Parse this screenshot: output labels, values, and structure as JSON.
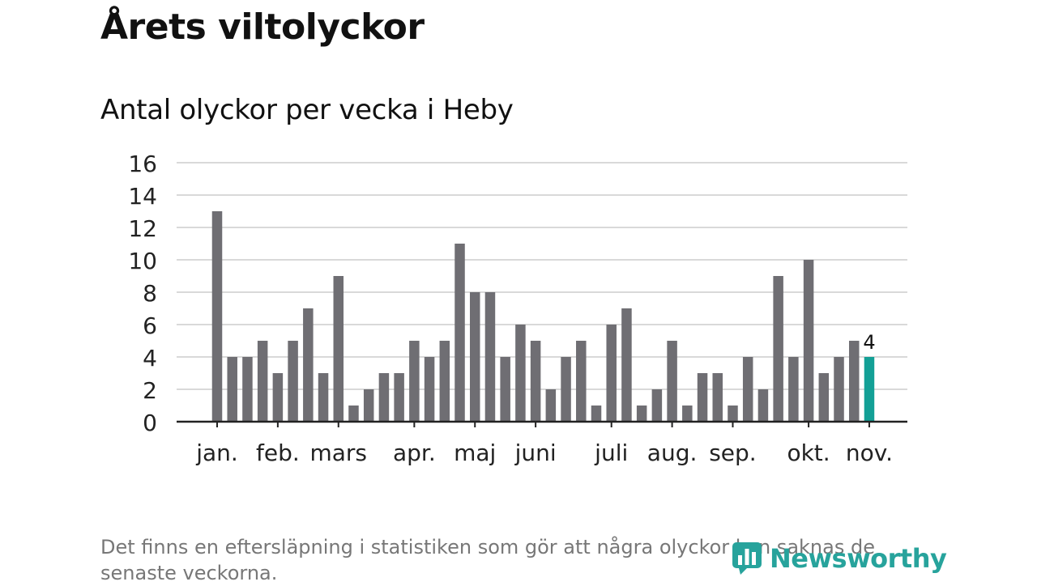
{
  "title": "Årets viltolyckor",
  "subtitle": "Antal olyckor per vecka i Heby",
  "footnote": "Det finns en eftersläpning i statistiken som gör att några olyckor kan saknas de senaste veckorna.",
  "logo_text": "Newsworthy",
  "colors": {
    "bar": "#6f6e73",
    "highlight": "#13a096",
    "grid": "#d9d9d9",
    "axis": "#222222",
    "logo": "#27a39c"
  },
  "chart_data": {
    "type": "bar",
    "title": "Antal olyckor per vecka i Heby",
    "xlabel": "",
    "ylabel": "",
    "ylim": [
      0,
      16
    ],
    "yticks": [
      0,
      2,
      4,
      6,
      8,
      10,
      12,
      14,
      16
    ],
    "grid": true,
    "values": [
      13,
      4,
      4,
      5,
      3,
      5,
      7,
      3,
      9,
      1,
      2,
      3,
      3,
      5,
      4,
      5,
      11,
      8,
      8,
      4,
      6,
      5,
      2,
      4,
      5,
      1,
      6,
      7,
      1,
      2,
      5,
      1,
      3,
      3,
      1,
      4,
      2,
      9,
      4,
      10,
      3,
      4,
      5,
      4
    ],
    "highlight_index": 43,
    "highlight_label": "4",
    "month_labels": [
      {
        "label": "jan.",
        "week_index": 0
      },
      {
        "label": "feb.",
        "week_index": 4
      },
      {
        "label": "mars",
        "week_index": 8
      },
      {
        "label": "apr.",
        "week_index": 13
      },
      {
        "label": "maj",
        "week_index": 17
      },
      {
        "label": "juni",
        "week_index": 21
      },
      {
        "label": "juli",
        "week_index": 26
      },
      {
        "label": "aug.",
        "week_index": 30
      },
      {
        "label": "sep.",
        "week_index": 34
      },
      {
        "label": "okt.",
        "week_index": 39
      },
      {
        "label": "nov.",
        "week_index": 43
      }
    ]
  }
}
